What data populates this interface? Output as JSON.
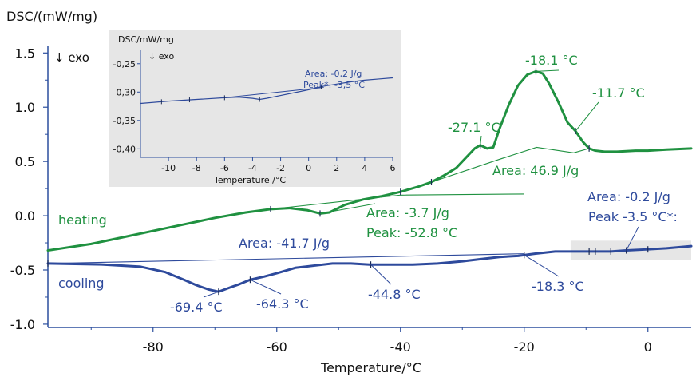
{
  "chart_data": {
    "type": "line",
    "ylabel": "DSC/(mW/mg)",
    "xlabel": "Temperature/°C",
    "exo_label": "↓ exo",
    "xlim": [
      -97,
      7
    ],
    "ylim": [
      -1.03,
      1.62
    ],
    "x_ticks": [
      -80,
      -60,
      -40,
      -20,
      0
    ],
    "x_tick_labels": [
      "-80",
      "-60",
      "-40",
      "-20",
      "0"
    ],
    "y_ticks": [
      1.5,
      1.0,
      0.5,
      0.0,
      -0.5,
      -1.0
    ],
    "y_tick_labels": [
      "1.5",
      "1.0",
      "0.5",
      "0.0",
      "-0.5",
      "-1.0"
    ],
    "colors": {
      "heating": "#1f9140",
      "cooling": "#2e4a9c",
      "axis": "#2c4f9e",
      "inset_bg": "#e6e6e6"
    },
    "series": [
      {
        "name": "heating",
        "color": "#1f9140",
        "x": [
          -97,
          -90,
          -85,
          -80,
          -75,
          -70,
          -65,
          -61,
          -58,
          -55,
          -53,
          -51.5,
          -49,
          -46,
          -43,
          -40,
          -37,
          -35,
          -33,
          -31,
          -29.5,
          -28,
          -27.1,
          -26,
          -25,
          -24,
          -22.5,
          -21,
          -19.5,
          -18.1,
          -17,
          -16,
          -14.5,
          -13,
          -11.7,
          -10.5,
          -9.5,
          -8.5,
          -7,
          -5,
          -2,
          0,
          3,
          7
        ],
        "y": [
          -0.32,
          -0.26,
          -0.2,
          -0.14,
          -0.08,
          -0.02,
          0.03,
          0.06,
          0.07,
          0.05,
          0.02,
          0.03,
          0.1,
          0.15,
          0.18,
          0.22,
          0.27,
          0.31,
          0.37,
          0.44,
          0.53,
          0.62,
          0.65,
          0.62,
          0.63,
          0.8,
          1.02,
          1.2,
          1.3,
          1.33,
          1.31,
          1.22,
          1.05,
          0.86,
          0.78,
          0.68,
          0.62,
          0.6,
          0.59,
          0.59,
          0.6,
          0.6,
          0.61,
          0.62
        ]
      },
      {
        "name": "cooling",
        "color": "#2e4a9c",
        "x": [
          -97,
          -88,
          -82,
          -78,
          -75,
          -73,
          -71,
          -69.4,
          -67.5,
          -66,
          -64.3,
          -62,
          -60,
          -57,
          -54,
          -51,
          -48,
          -45,
          -42,
          -38,
          -34,
          -30,
          -27,
          -24,
          -21,
          -18.3,
          -15,
          -12,
          -9,
          -6,
          -3.5,
          0,
          3,
          7
        ],
        "y": [
          -0.44,
          -0.45,
          -0.47,
          -0.52,
          -0.59,
          -0.64,
          -0.68,
          -0.7,
          -0.66,
          -0.63,
          -0.59,
          -0.56,
          -0.53,
          -0.48,
          -0.46,
          -0.44,
          -0.44,
          -0.45,
          -0.45,
          -0.45,
          -0.44,
          -0.42,
          -0.4,
          -0.38,
          -0.37,
          -0.35,
          -0.33,
          -0.33,
          -0.33,
          -0.33,
          -0.32,
          -0.31,
          -0.3,
          -0.28
        ]
      }
    ],
    "baselines": [
      {
        "series": "heating",
        "x": [
          -61,
          -40,
          -20
        ],
        "y": [
          0.06,
          0.19,
          0.2
        ]
      },
      {
        "series": "heating",
        "x": [
          -35,
          -24,
          -18,
          -12,
          -9.5
        ],
        "y": [
          0.31,
          0.52,
          0.63,
          0.58,
          0.62
        ]
      },
      {
        "series": "cooling",
        "x": [
          -97,
          -20
        ],
        "y": [
          -0.44,
          -0.35
        ]
      }
    ],
    "markers": [
      {
        "series": "heating",
        "x": [
          -61,
          -53,
          -40,
          -35,
          -27.1,
          -18.1,
          -11.7,
          -9.5
        ]
      },
      {
        "series": "cooling",
        "x": [
          -97,
          -69.4,
          -64.3,
          -44.8,
          -20,
          -9.5,
          -8.5,
          -6,
          -3.5,
          0
        ]
      }
    ],
    "labels": [
      {
        "text": "heating",
        "color": "heating"
      },
      {
        "text": "cooling",
        "color": "cooling"
      },
      {
        "text": "-27.1 °C",
        "color": "heating"
      },
      {
        "text": "-18.1 °C",
        "color": "heating"
      },
      {
        "text": "-11.7 °C",
        "color": "heating"
      },
      {
        "text": "Area: 46.9 J/g",
        "color": "heating"
      },
      {
        "text": "Area: -3.7 J/g",
        "color": "heating"
      },
      {
        "text": "Peak: -52.8 °C",
        "color": "heating"
      },
      {
        "text": "Area: -41.7 J/g",
        "color": "cooling"
      },
      {
        "text": "-69.4 °C",
        "color": "cooling"
      },
      {
        "text": "-64.3 °C",
        "color": "cooling"
      },
      {
        "text": "-44.8 °C",
        "color": "cooling"
      },
      {
        "text": "-18.3 °C",
        "color": "cooling"
      },
      {
        "text": "Area: -0.2 J/g",
        "color": "cooling"
      },
      {
        "text": "Peak -3.5 °C*:",
        "color": "cooling"
      }
    ],
    "zoom_region": {
      "x": [
        -12.5,
        7
      ],
      "y": [
        -0.23,
        -0.41
      ]
    },
    "inset": {
      "ylabel": "DSC/mW/mg",
      "exo_label": "↓ exo",
      "xlabel": "Temperature /°C",
      "xlim": [
        -12,
        6
      ],
      "ylim": [
        -0.415,
        -0.225
      ],
      "x_ticks": [
        -10,
        -8,
        -6,
        -4,
        -2,
        0,
        2,
        4,
        6
      ],
      "x_tick_labels": [
        "-10",
        "-8",
        "-6",
        "-4",
        "-2",
        "0",
        "2",
        "4",
        "6"
      ],
      "y_ticks": [
        -0.25,
        -0.3,
        -0.35,
        -0.4
      ],
      "y_tick_labels": [
        "-0,25",
        "-0,30",
        "-0,35",
        "-0,40"
      ],
      "series": {
        "x": [
          -12,
          -10,
          -8,
          -6,
          -5,
          -4,
          -3.5,
          -3,
          -2,
          -1,
          0,
          1,
          2,
          3,
          4,
          5,
          6
        ],
        "y": [
          -0.32,
          -0.316,
          -0.313,
          -0.31,
          -0.309,
          -0.311,
          -0.313,
          -0.311,
          -0.306,
          -0.301,
          -0.296,
          -0.29,
          -0.286,
          -0.282,
          -0.279,
          -0.277,
          -0.275
        ]
      },
      "baseline": {
        "x": [
          -6,
          1
        ],
        "y": [
          -0.31,
          -0.292
        ]
      },
      "markers": {
        "x": [
          -10.5,
          -8.5,
          -6,
          -3.5,
          0.9
        ]
      },
      "labels": [
        {
          "text": "Area: -0,2 J/g"
        },
        {
          "text": "Peak*: -3,5 °C"
        }
      ]
    }
  }
}
